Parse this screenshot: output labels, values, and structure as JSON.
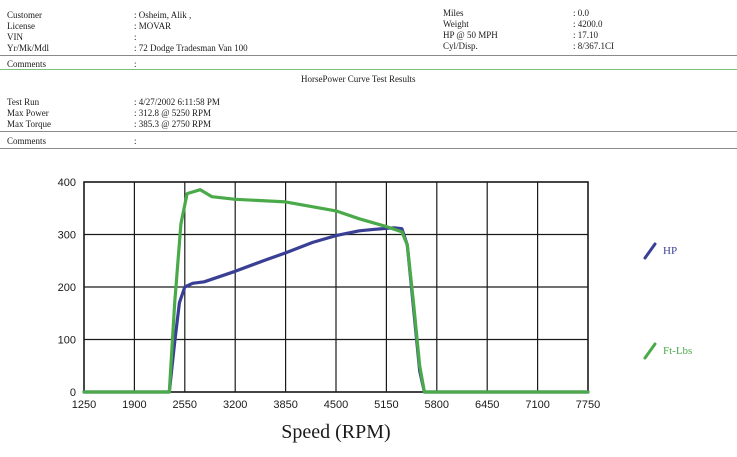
{
  "header": {
    "customer_label": "Customer",
    "customer_value": ": Osheim, Alik  ,",
    "license_label": "License",
    "license_value": ": MOVAR",
    "vin_label": "VIN",
    "vin_value": ":",
    "ymm_label": "Yr/Mk/Mdl",
    "ymm_value": ": 72 Dodge Tradesman Van 100",
    "miles_label": "Miles",
    "miles_value": ": 0.0",
    "weight_label": "Weight",
    "weight_value": ": 4200.0",
    "hp50_label": "HP @ 50 MPH",
    "hp50_value": ": 17.10",
    "cyl_label": "Cyl/Disp.",
    "cyl_value": ": 8/367.1CI",
    "comments1_label": "Comments",
    "comments1_value": ":",
    "report_title": "HorsePower Curve Test Results",
    "testrun_label": "Test Run",
    "testrun_value": ": 4/27/2002 6:11:58 PM",
    "maxpower_label": "Max Power",
    "maxpower_value": ": 312.8     @ 5250  RPM",
    "maxtorque_label": "Max Torque",
    "maxtorque_value": ": 385.3     @ 2750  RPM",
    "comments2_label": "Comments",
    "comments2_value": ":"
  },
  "chart_data": {
    "type": "line",
    "xlabel": "Speed (RPM)",
    "ylabel": "",
    "xlim": [
      1250,
      7750
    ],
    "ylim": [
      0,
      400
    ],
    "x_ticks": [
      "1250",
      "1900",
      "2550",
      "3200",
      "3850",
      "4500",
      "5150",
      "5800",
      "6450",
      "7100",
      "7750"
    ],
    "y_ticks": [
      "400",
      "300",
      "200",
      "100",
      "0"
    ],
    "grid": true,
    "legend_placement": "right",
    "series": [
      {
        "name": "HP",
        "color": "#3a3f96",
        "points": [
          [
            1250,
            0
          ],
          [
            2350,
            0
          ],
          [
            2420,
            95
          ],
          [
            2480,
            170
          ],
          [
            2550,
            200
          ],
          [
            2650,
            207
          ],
          [
            2800,
            210
          ],
          [
            3200,
            230
          ],
          [
            3600,
            252
          ],
          [
            3850,
            265
          ],
          [
            4200,
            285
          ],
          [
            4500,
            298
          ],
          [
            4800,
            307
          ],
          [
            5000,
            310
          ],
          [
            5250,
            312.8
          ],
          [
            5350,
            311
          ],
          [
            5420,
            280
          ],
          [
            5500,
            160
          ],
          [
            5580,
            40
          ],
          [
            5640,
            0
          ],
          [
            7750,
            0
          ]
        ]
      },
      {
        "name": "Ft-Lbs",
        "color": "#4aaa4a",
        "points": [
          [
            1250,
            0
          ],
          [
            2350,
            0
          ],
          [
            2420,
            170
          ],
          [
            2500,
            320
          ],
          [
            2580,
            378
          ],
          [
            2750,
            385.3
          ],
          [
            2900,
            372
          ],
          [
            3200,
            367
          ],
          [
            3850,
            362
          ],
          [
            4500,
            345
          ],
          [
            4800,
            330
          ],
          [
            5150,
            315
          ],
          [
            5350,
            305
          ],
          [
            5420,
            280
          ],
          [
            5500,
            170
          ],
          [
            5580,
            50
          ],
          [
            5640,
            0
          ],
          [
            7750,
            0
          ]
        ]
      }
    ]
  }
}
